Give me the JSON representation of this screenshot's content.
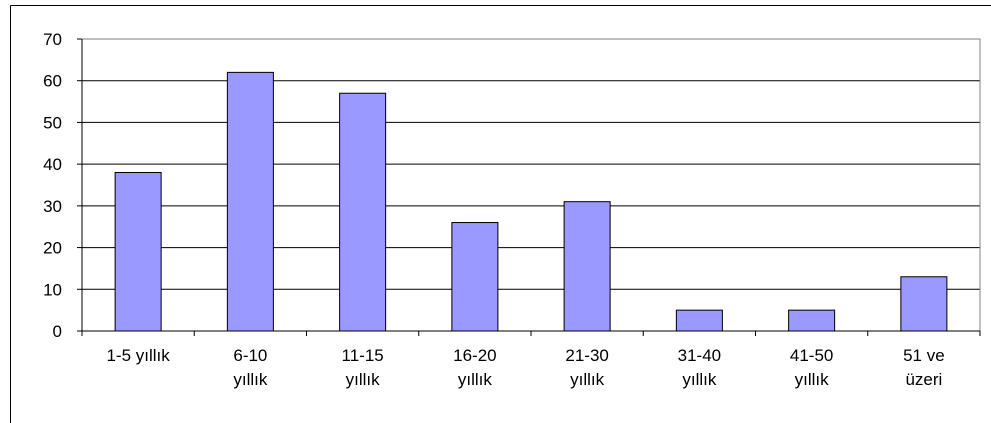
{
  "chart_data": {
    "type": "bar",
    "categories": [
      "1-5 yıllık",
      "6-10\nyıllık",
      "11-15\nyıllık",
      "16-20\nyıllık",
      "21-30\nyıllık",
      "31-40\nyıllık",
      "41-50\nyıllık",
      "51 ve\nüzeri"
    ],
    "values": [
      38,
      62,
      57,
      26,
      31,
      5,
      5,
      13
    ],
    "color": "#9999ff",
    "ylim": [
      0,
      70
    ],
    "yticks": [
      0,
      10,
      20,
      30,
      40,
      50,
      60,
      70
    ],
    "grid": true
  }
}
